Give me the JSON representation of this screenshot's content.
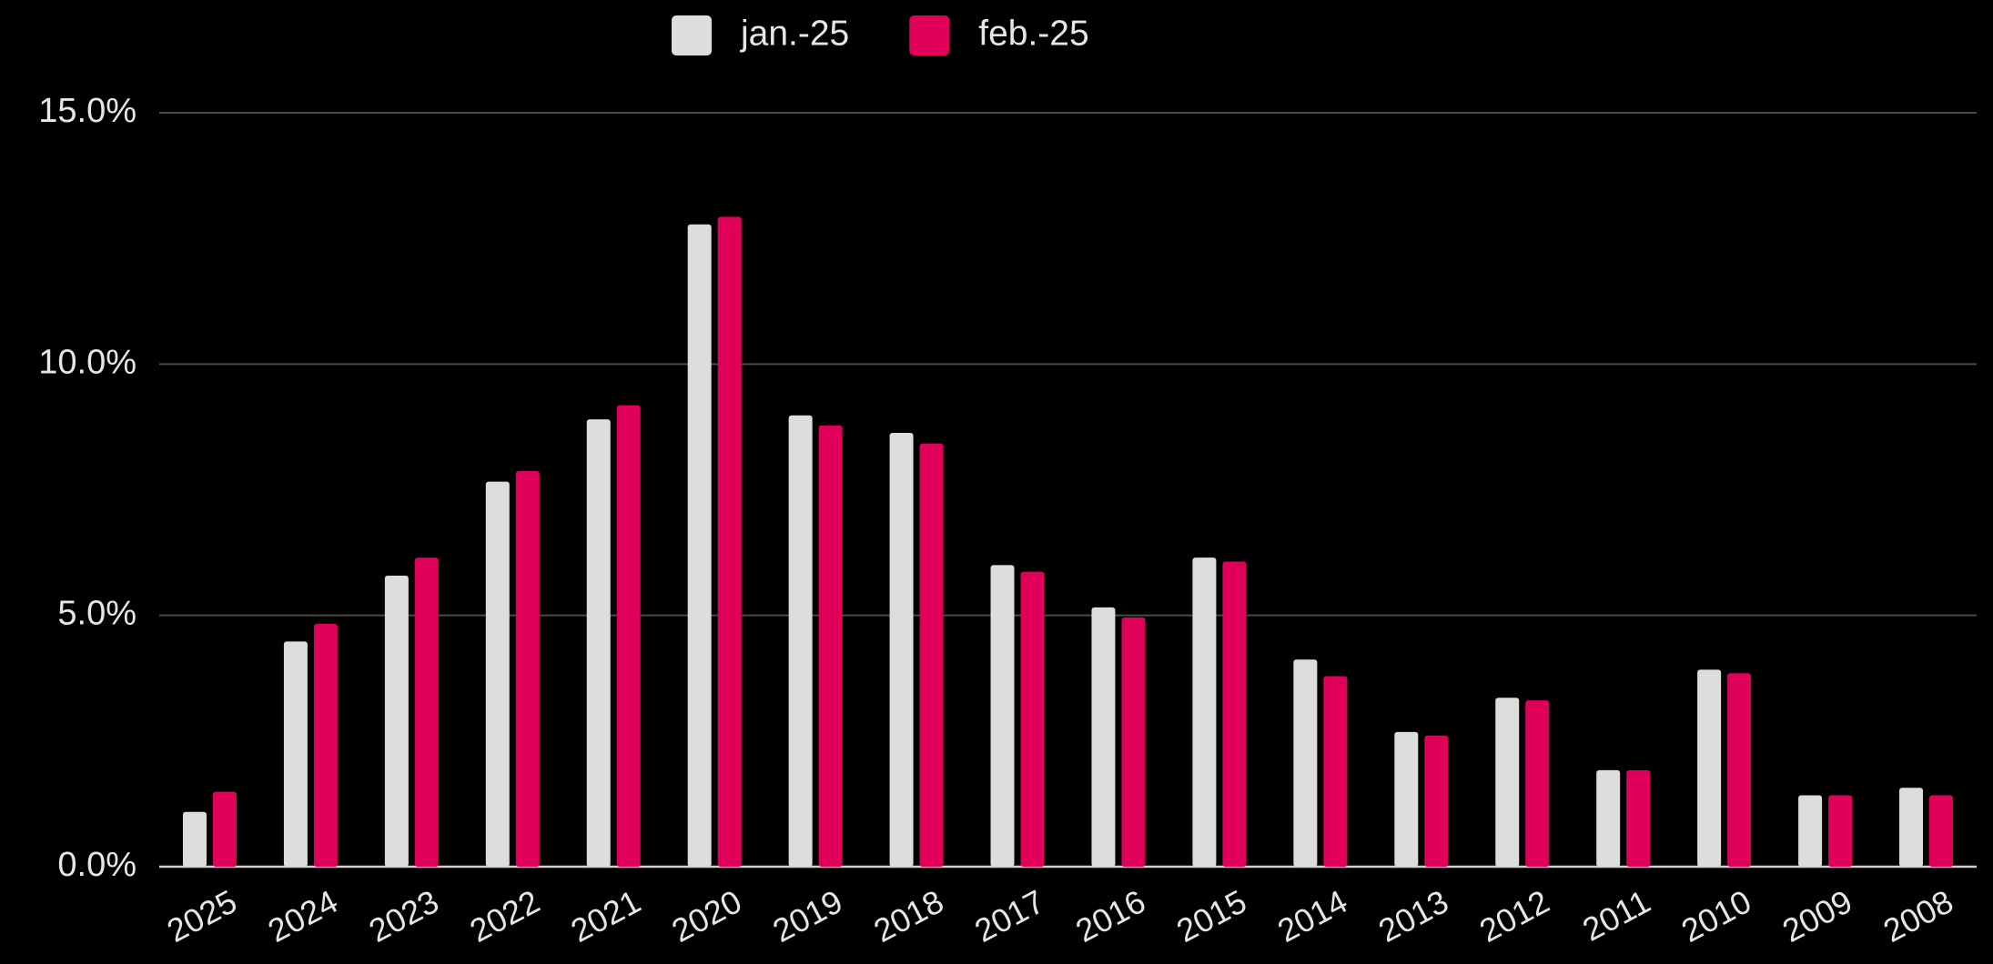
{
  "chart_data": {
    "type": "bar",
    "categories": [
      "2025",
      "2024",
      "2023",
      "2022",
      "2021",
      "2020",
      "2019",
      "2018",
      "2017",
      "2016",
      "2015",
      "2014",
      "2013",
      "2012",
      "2011",
      "2010",
      "2009",
      "2008"
    ],
    "series": [
      {
        "name": "jan.-25",
        "color": "#dddddd",
        "values": [
          1.09,
          4.48,
          5.79,
          7.66,
          8.9,
          12.78,
          8.98,
          8.63,
          6.0,
          5.16,
          6.15,
          4.12,
          2.68,
          3.36,
          1.92,
          3.92,
          1.42,
          1.57
        ]
      },
      {
        "name": "feb.-25",
        "color": "#e0005a",
        "values": [
          1.49,
          4.83,
          6.15,
          7.87,
          9.18,
          12.93,
          8.78,
          8.42,
          5.87,
          4.96,
          6.07,
          3.79,
          2.61,
          3.31,
          1.92,
          3.85,
          1.42,
          1.42
        ]
      }
    ],
    "ylim": [
      0,
      15
    ],
    "yticks": [
      {
        "value": 0,
        "label": "0.0%"
      },
      {
        "value": 5,
        "label": "5.0%"
      },
      {
        "value": 10,
        "label": "10.0%"
      },
      {
        "value": 15,
        "label": "15.0%"
      }
    ],
    "grid": true,
    "legend": "top"
  }
}
